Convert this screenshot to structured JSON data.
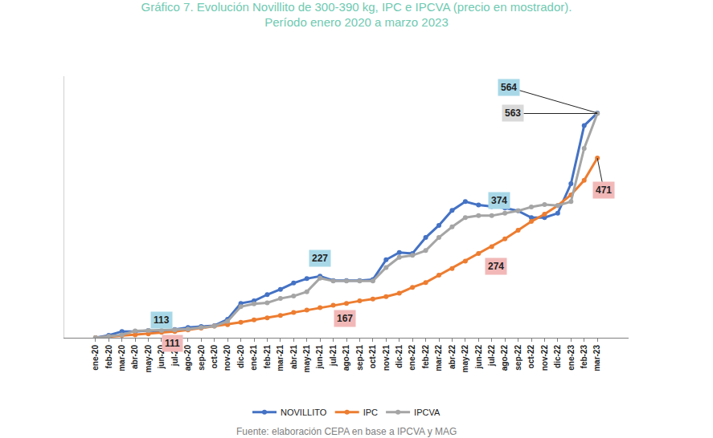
{
  "chart_data": {
    "type": "line",
    "title": "Gráfico 7. Evolución Novillito de 300-390 kg, IPC e IPCVA (precio en mostrador).",
    "subtitle": "Período enero 2020 a marzo 2023",
    "source": "Fuente: elaboración CEPA en base a IPCVA y MAG",
    "categories": [
      "ene-20",
      "feb-20",
      "mar-20",
      "abr-20",
      "may-20",
      "jun-20",
      "jul-20",
      "ago-20",
      "sep-20",
      "oct-20",
      "nov-20",
      "dic-20",
      "ene-21",
      "feb-21",
      "mar-21",
      "abr-21",
      "may-21",
      "jun-21",
      "jul-21",
      "ago-21",
      "sep-21",
      "oct-21",
      "nov-21",
      "dic-21",
      "ene-22",
      "feb-22",
      "mar-22",
      "abr-22",
      "may-22",
      "jun-22",
      "jul-22",
      "ago-22",
      "sep-22",
      "oct-22",
      "nov-22",
      "dic-22",
      "ene-23",
      "feb-23",
      "mar-23"
    ],
    "series": [
      {
        "name": "NOVILLITO",
        "color": "#4472c4",
        "values": [
          100,
          105,
          113,
          113,
          115,
          113,
          117,
          121,
          123,
          125,
          138,
          171,
          176,
          189,
          200,
          213,
          222,
          227,
          218,
          218,
          218,
          220,
          261,
          276,
          274,
          307,
          332,
          363,
          381,
          374,
          371,
          368,
          362,
          348,
          348,
          357,
          418,
          538,
          564
        ]
      },
      {
        "name": "IPC",
        "color": "#ed7d31",
        "values": [
          100,
          102,
          105,
          106,
          108,
          111,
          113,
          116,
          120,
          124,
          127,
          132,
          137,
          141,
          146,
          152,
          157,
          162,
          167,
          171,
          176,
          180,
          185,
          192,
          204,
          214,
          229,
          243,
          258,
          274,
          288,
          304,
          322,
          340,
          355,
          373,
          395,
          425,
          471
        ]
      },
      {
        "name": "IPCVA",
        "color": "#a5a5a5",
        "values": [
          100,
          103,
          106,
          114,
          115,
          115,
          116,
          118,
          121,
          124,
          134,
          164,
          170,
          172,
          181,
          186,
          195,
          223,
          217,
          217,
          217,
          217,
          245,
          266,
          270,
          280,
          307,
          329,
          348,
          352,
          352,
          357,
          362,
          370,
          375,
          373,
          381,
          491,
          563
        ]
      }
    ],
    "annotations": [
      {
        "series": "NOVILLITO",
        "x": "jun-20",
        "text": "113"
      },
      {
        "series": "IPC",
        "x": "jun-20",
        "text": "111"
      },
      {
        "series": "NOVILLITO",
        "x": "jun-21",
        "text": "227"
      },
      {
        "series": "IPC",
        "x": "jul-21",
        "text": "167"
      },
      {
        "series": "NOVILLITO",
        "x": "jun-22",
        "text": "374"
      },
      {
        "series": "IPC",
        "x": "jun-22",
        "text": "274"
      },
      {
        "series": "NOVILLITO",
        "x": "mar-23",
        "text": "564"
      },
      {
        "series": "IPCVA",
        "x": "mar-23",
        "text": "563"
      },
      {
        "series": "IPC",
        "x": "mar-23",
        "text": "471"
      }
    ],
    "ylim": [
      100,
      640
    ],
    "marker": "circle",
    "line_style": "solid",
    "legend": "bottom",
    "grid": false,
    "tick_labels": "x"
  }
}
